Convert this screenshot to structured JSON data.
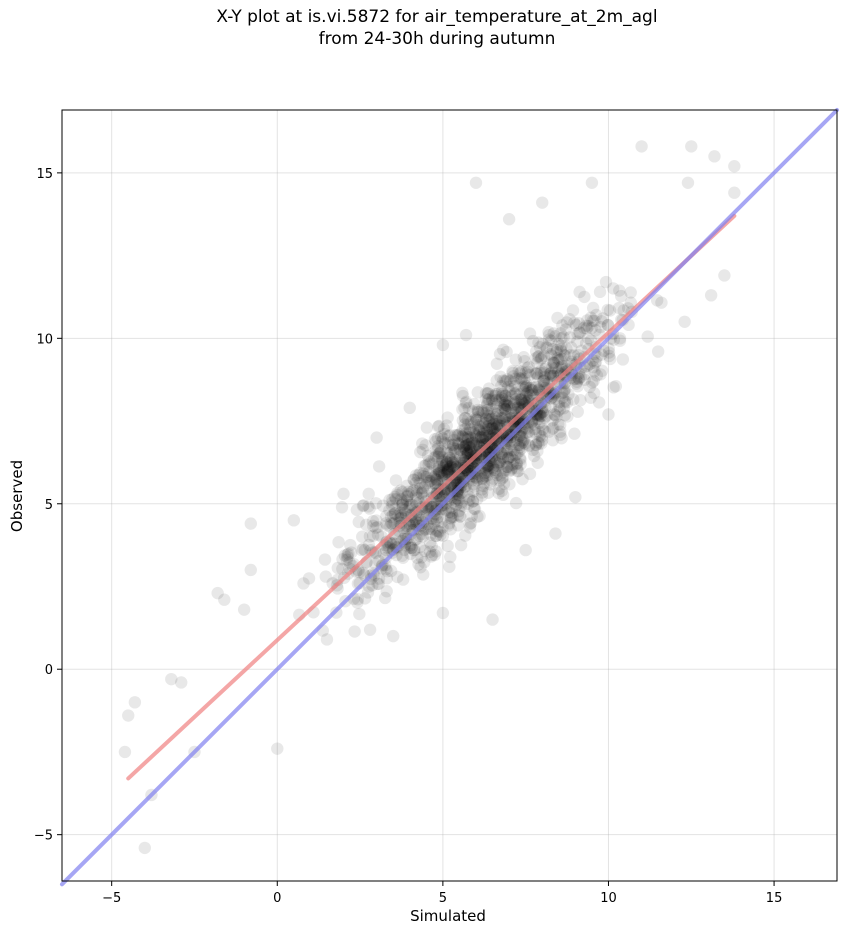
{
  "chart_data": {
    "type": "scatter",
    "title_line1": "X-Y plot at is.vi.5872 for air_temperature_at_2m_agl",
    "title_line2": "from 24-30h during autumn",
    "xlabel": "Simulated",
    "ylabel": "Observed",
    "xlim": [
      -6.5,
      16.9
    ],
    "ylim": [
      -6.4,
      16.9
    ],
    "xticks": [
      -5,
      0,
      5,
      10,
      15
    ],
    "yticks": [
      -5,
      0,
      5,
      10,
      15
    ],
    "xtick_labels": [
      "−5",
      "0",
      "5",
      "10",
      "15"
    ],
    "ytick_labels": [
      "−5",
      "0",
      "5",
      "10",
      "15"
    ],
    "grid": true,
    "regression_line": {
      "color": "#f08080",
      "x": [
        -4.5,
        13.8
      ],
      "y": [
        -3.3,
        13.7
      ]
    },
    "identity_line": {
      "color": "#8080f0",
      "x": [
        -6.5,
        16.9
      ],
      "y": [
        -6.5,
        16.9
      ]
    },
    "point_color": "#000000",
    "point_count": 1500,
    "sample_points": [
      [
        -4.0,
        -5.4
      ],
      [
        -4.3,
        -1.0
      ],
      [
        -4.5,
        -1.4
      ],
      [
        -4.6,
        -2.5
      ],
      [
        -3.8,
        -3.8
      ],
      [
        -3.2,
        -0.3
      ],
      [
        -2.9,
        -0.4
      ],
      [
        -2.5,
        -2.5
      ],
      [
        -1.8,
        2.3
      ],
      [
        -1.6,
        2.1
      ],
      [
        -1.0,
        1.8
      ],
      [
        -0.8,
        3.0
      ],
      [
        -0.8,
        4.4
      ],
      [
        0.0,
        -2.4
      ],
      [
        0.5,
        4.5
      ],
      [
        1.5,
        0.9
      ],
      [
        2.0,
        5.3
      ],
      [
        3.0,
        7.0
      ],
      [
        3.5,
        1.0
      ],
      [
        4.0,
        7.9
      ],
      [
        5.0,
        9.8
      ],
      [
        5.0,
        1.7
      ],
      [
        5.7,
        10.1
      ],
      [
        6.0,
        14.7
      ],
      [
        6.5,
        1.5
      ],
      [
        7.0,
        13.6
      ],
      [
        7.5,
        3.6
      ],
      [
        8.0,
        14.1
      ],
      [
        8.4,
        4.1
      ],
      [
        9.0,
        5.2
      ],
      [
        9.5,
        14.7
      ],
      [
        10.0,
        7.7
      ],
      [
        11.0,
        15.8
      ],
      [
        11.5,
        9.6
      ],
      [
        12.3,
        10.5
      ],
      [
        12.5,
        15.8
      ],
      [
        12.4,
        14.7
      ],
      [
        13.2,
        15.5
      ],
      [
        13.8,
        15.2
      ],
      [
        13.8,
        14.4
      ],
      [
        13.5,
        11.9
      ],
      [
        13.1,
        11.3
      ]
    ]
  }
}
